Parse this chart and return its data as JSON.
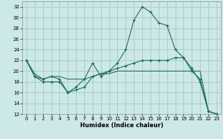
{
  "title": "",
  "xlabel": "Humidex (Indice chaleur)",
  "bg_color": "#cce8e8",
  "grid_color": "#aacccc",
  "line_color": "#1a6b5a",
  "xlim": [
    -0.5,
    23.5
  ],
  "ylim": [
    12,
    33
  ],
  "xticks": [
    0,
    1,
    2,
    3,
    4,
    5,
    6,
    7,
    8,
    9,
    10,
    11,
    12,
    13,
    14,
    15,
    16,
    17,
    18,
    19,
    20,
    21,
    22,
    23
  ],
  "yticks": [
    12,
    14,
    16,
    18,
    20,
    22,
    24,
    26,
    28,
    30,
    32
  ],
  "line1_x": [
    0,
    1,
    2,
    3,
    4,
    5,
    6,
    7,
    8,
    9,
    10,
    11,
    12,
    13,
    14,
    15,
    16,
    17,
    18,
    19,
    20,
    21,
    22,
    23
  ],
  "line1_y": [
    22,
    19,
    18,
    18,
    18,
    16,
    17,
    18.5,
    21.5,
    19,
    20,
    21.5,
    24,
    29.5,
    32,
    31,
    29,
    28.5,
    24,
    22.5,
    20,
    18.5,
    12.5,
    12
  ],
  "line2_x": [
    0,
    1,
    2,
    3,
    4,
    5,
    6,
    7,
    8,
    9,
    10,
    11,
    12,
    13,
    14,
    15,
    16,
    17,
    18,
    19,
    20,
    21,
    22,
    23
  ],
  "line2_y": [
    22,
    19,
    18.5,
    19,
    18.5,
    16,
    16.5,
    17,
    19,
    19.5,
    20,
    20.5,
    21,
    21.5,
    22,
    22,
    22,
    22,
    22.5,
    22.5,
    20.5,
    18,
    12.5,
    12
  ],
  "line3_x": [
    0,
    1,
    2,
    3,
    4,
    5,
    6,
    7,
    8,
    9,
    10,
    11,
    12,
    13,
    14,
    15,
    16,
    17,
    18,
    19,
    20,
    21,
    22,
    23
  ],
  "line3_y": [
    22,
    19.5,
    18.5,
    19,
    19,
    18.5,
    18.5,
    18.5,
    19,
    19.5,
    19.5,
    20,
    20,
    20,
    20,
    20,
    20,
    20,
    20,
    20,
    20,
    20,
    12.5,
    12
  ]
}
